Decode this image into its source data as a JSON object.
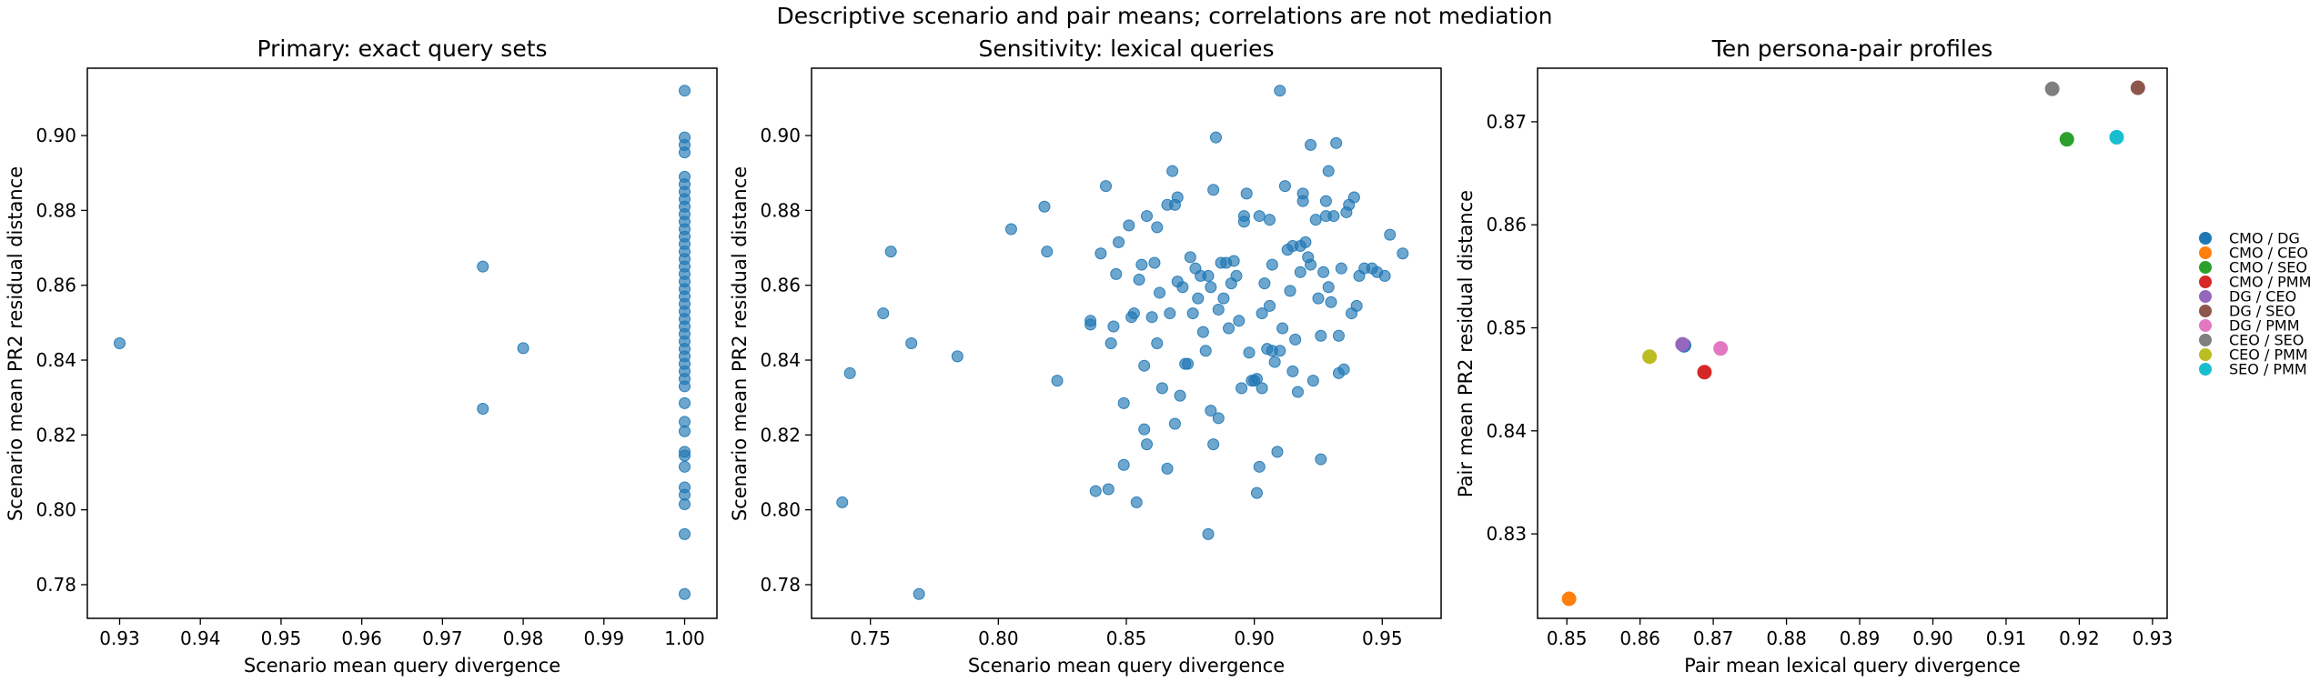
{
  "figure": {
    "suptitle": "Descriptive scenario and pair means; correlations are not mediation"
  },
  "chart_data": [
    {
      "type": "scatter",
      "title": "Primary: exact query sets",
      "xlabel": "Scenario mean query divergence",
      "ylabel": "Scenario mean PR2 residual distance",
      "xlim": [
        0.926,
        1.004
      ],
      "ylim": [
        0.771,
        0.918
      ],
      "xticks": [
        "0.93",
        "0.94",
        "0.95",
        "0.96",
        "0.97",
        "0.98",
        "0.99",
        "1.00"
      ],
      "yticks": [
        "0.78",
        "0.80",
        "0.82",
        "0.84",
        "0.86",
        "0.88",
        "0.90"
      ],
      "grid": false,
      "color": "#1f77b4",
      "points": [
        {
          "x": 0.93,
          "y": 0.8445
        },
        {
          "x": 0.975,
          "y": 0.865
        },
        {
          "x": 0.975,
          "y": 0.827
        },
        {
          "x": 0.98,
          "y": 0.8432
        },
        {
          "x": 1.0,
          "y": 0.912
        },
        {
          "x": 1.0,
          "y": 0.8995
        },
        {
          "x": 1.0,
          "y": 0.8975
        },
        {
          "x": 1.0,
          "y": 0.8955
        },
        {
          "x": 1.0,
          "y": 0.889
        },
        {
          "x": 1.0,
          "y": 0.887
        },
        {
          "x": 1.0,
          "y": 0.885
        },
        {
          "x": 1.0,
          "y": 0.883
        },
        {
          "x": 1.0,
          "y": 0.881
        },
        {
          "x": 1.0,
          "y": 0.879
        },
        {
          "x": 1.0,
          "y": 0.877
        },
        {
          "x": 1.0,
          "y": 0.875
        },
        {
          "x": 1.0,
          "y": 0.873
        },
        {
          "x": 1.0,
          "y": 0.871
        },
        {
          "x": 1.0,
          "y": 0.869
        },
        {
          "x": 1.0,
          "y": 0.867
        },
        {
          "x": 1.0,
          "y": 0.865
        },
        {
          "x": 1.0,
          "y": 0.863
        },
        {
          "x": 1.0,
          "y": 0.861
        },
        {
          "x": 1.0,
          "y": 0.859
        },
        {
          "x": 1.0,
          "y": 0.857
        },
        {
          "x": 1.0,
          "y": 0.855
        },
        {
          "x": 1.0,
          "y": 0.853
        },
        {
          "x": 1.0,
          "y": 0.851
        },
        {
          "x": 1.0,
          "y": 0.849
        },
        {
          "x": 1.0,
          "y": 0.847
        },
        {
          "x": 1.0,
          "y": 0.845
        },
        {
          "x": 1.0,
          "y": 0.843
        },
        {
          "x": 1.0,
          "y": 0.841
        },
        {
          "x": 1.0,
          "y": 0.839
        },
        {
          "x": 1.0,
          "y": 0.837
        },
        {
          "x": 1.0,
          "y": 0.835
        },
        {
          "x": 1.0,
          "y": 0.833
        },
        {
          "x": 1.0,
          "y": 0.8285
        },
        {
          "x": 1.0,
          "y": 0.8235
        },
        {
          "x": 1.0,
          "y": 0.821
        },
        {
          "x": 1.0,
          "y": 0.8155
        },
        {
          "x": 1.0,
          "y": 0.8145
        },
        {
          "x": 1.0,
          "y": 0.8115
        },
        {
          "x": 1.0,
          "y": 0.806
        },
        {
          "x": 1.0,
          "y": 0.804
        },
        {
          "x": 1.0,
          "y": 0.8015
        },
        {
          "x": 1.0,
          "y": 0.7935
        },
        {
          "x": 1.0,
          "y": 0.7775
        }
      ]
    },
    {
      "type": "scatter",
      "title": "Sensitivity: lexical queries",
      "xlabel": "Scenario mean query divergence",
      "ylabel": "Scenario mean PR2 residual distance",
      "xlim": [
        0.727,
        0.973
      ],
      "ylim": [
        0.771,
        0.918
      ],
      "xticks": [
        "0.75",
        "0.80",
        "0.85",
        "0.90",
        "0.95"
      ],
      "yticks": [
        "0.78",
        "0.80",
        "0.82",
        "0.84",
        "0.86",
        "0.88",
        "0.90"
      ],
      "grid": false,
      "color": "#1f77b4",
      "points": [
        {
          "x": 0.739,
          "y": 0.802
        },
        {
          "x": 0.742,
          "y": 0.8365
        },
        {
          "x": 0.755,
          "y": 0.8525
        },
        {
          "x": 0.758,
          "y": 0.869
        },
        {
          "x": 0.766,
          "y": 0.8445
        },
        {
          "x": 0.769,
          "y": 0.7775
        },
        {
          "x": 0.784,
          "y": 0.841
        },
        {
          "x": 0.805,
          "y": 0.875
        },
        {
          "x": 0.818,
          "y": 0.881
        },
        {
          "x": 0.819,
          "y": 0.869
        },
        {
          "x": 0.823,
          "y": 0.8345
        },
        {
          "x": 0.836,
          "y": 0.8495
        },
        {
          "x": 0.836,
          "y": 0.8505
        },
        {
          "x": 0.838,
          "y": 0.805
        },
        {
          "x": 0.84,
          "y": 0.8685
        },
        {
          "x": 0.842,
          "y": 0.8865
        },
        {
          "x": 0.843,
          "y": 0.8055
        },
        {
          "x": 0.844,
          "y": 0.8445
        },
        {
          "x": 0.845,
          "y": 0.849
        },
        {
          "x": 0.846,
          "y": 0.863
        },
        {
          "x": 0.847,
          "y": 0.8715
        },
        {
          "x": 0.849,
          "y": 0.8285
        },
        {
          "x": 0.849,
          "y": 0.812
        },
        {
          "x": 0.851,
          "y": 0.876
        },
        {
          "x": 0.852,
          "y": 0.8515
        },
        {
          "x": 0.853,
          "y": 0.8525
        },
        {
          "x": 0.854,
          "y": 0.802
        },
        {
          "x": 0.855,
          "y": 0.8615
        },
        {
          "x": 0.856,
          "y": 0.8655
        },
        {
          "x": 0.857,
          "y": 0.8385
        },
        {
          "x": 0.857,
          "y": 0.8215
        },
        {
          "x": 0.858,
          "y": 0.8785
        },
        {
          "x": 0.858,
          "y": 0.8175
        },
        {
          "x": 0.86,
          "y": 0.8515
        },
        {
          "x": 0.861,
          "y": 0.866
        },
        {
          "x": 0.862,
          "y": 0.8755
        },
        {
          "x": 0.862,
          "y": 0.8445
        },
        {
          "x": 0.863,
          "y": 0.858
        },
        {
          "x": 0.864,
          "y": 0.8325
        },
        {
          "x": 0.866,
          "y": 0.811
        },
        {
          "x": 0.866,
          "y": 0.8815
        },
        {
          "x": 0.867,
          "y": 0.8525
        },
        {
          "x": 0.868,
          "y": 0.8905
        },
        {
          "x": 0.869,
          "y": 0.8815
        },
        {
          "x": 0.869,
          "y": 0.823
        },
        {
          "x": 0.87,
          "y": 0.8835
        },
        {
          "x": 0.87,
          "y": 0.861
        },
        {
          "x": 0.871,
          "y": 0.8305
        },
        {
          "x": 0.872,
          "y": 0.8595
        },
        {
          "x": 0.873,
          "y": 0.839
        },
        {
          "x": 0.874,
          "y": 0.839
        },
        {
          "x": 0.875,
          "y": 0.8675
        },
        {
          "x": 0.876,
          "y": 0.8525
        },
        {
          "x": 0.877,
          "y": 0.8645
        },
        {
          "x": 0.878,
          "y": 0.8565
        },
        {
          "x": 0.879,
          "y": 0.8625
        },
        {
          "x": 0.88,
          "y": 0.8475
        },
        {
          "x": 0.881,
          "y": 0.8425
        },
        {
          "x": 0.882,
          "y": 0.8625
        },
        {
          "x": 0.882,
          "y": 0.7935
        },
        {
          "x": 0.883,
          "y": 0.8595
        },
        {
          "x": 0.883,
          "y": 0.8265
        },
        {
          "x": 0.884,
          "y": 0.8855
        },
        {
          "x": 0.884,
          "y": 0.8175
        },
        {
          "x": 0.885,
          "y": 0.8995
        },
        {
          "x": 0.886,
          "y": 0.8535
        },
        {
          "x": 0.886,
          "y": 0.8245
        },
        {
          "x": 0.887,
          "y": 0.866
        },
        {
          "x": 0.888,
          "y": 0.8565
        },
        {
          "x": 0.889,
          "y": 0.866
        },
        {
          "x": 0.89,
          "y": 0.8485
        },
        {
          "x": 0.891,
          "y": 0.8605
        },
        {
          "x": 0.892,
          "y": 0.8665
        },
        {
          "x": 0.893,
          "y": 0.8625
        },
        {
          "x": 0.894,
          "y": 0.8505
        },
        {
          "x": 0.895,
          "y": 0.8325
        },
        {
          "x": 0.896,
          "y": 0.8785
        },
        {
          "x": 0.896,
          "y": 0.877
        },
        {
          "x": 0.897,
          "y": 0.8845
        },
        {
          "x": 0.898,
          "y": 0.842
        },
        {
          "x": 0.899,
          "y": 0.8345
        },
        {
          "x": 0.9,
          "y": 0.8345
        },
        {
          "x": 0.901,
          "y": 0.8045
        },
        {
          "x": 0.901,
          "y": 0.835
        },
        {
          "x": 0.902,
          "y": 0.8115
        },
        {
          "x": 0.902,
          "y": 0.8785
        },
        {
          "x": 0.903,
          "y": 0.8325
        },
        {
          "x": 0.903,
          "y": 0.8525
        },
        {
          "x": 0.904,
          "y": 0.8605
        },
        {
          "x": 0.905,
          "y": 0.843
        },
        {
          "x": 0.906,
          "y": 0.8545
        },
        {
          "x": 0.906,
          "y": 0.8775
        },
        {
          "x": 0.907,
          "y": 0.8425
        },
        {
          "x": 0.907,
          "y": 0.8655
        },
        {
          "x": 0.908,
          "y": 0.8395
        },
        {
          "x": 0.909,
          "y": 0.8155
        },
        {
          "x": 0.91,
          "y": 0.912
        },
        {
          "x": 0.91,
          "y": 0.8425
        },
        {
          "x": 0.911,
          "y": 0.8485
        },
        {
          "x": 0.912,
          "y": 0.8865
        },
        {
          "x": 0.913,
          "y": 0.8695
        },
        {
          "x": 0.914,
          "y": 0.8585
        },
        {
          "x": 0.915,
          "y": 0.8705
        },
        {
          "x": 0.915,
          "y": 0.837
        },
        {
          "x": 0.916,
          "y": 0.8455
        },
        {
          "x": 0.917,
          "y": 0.8315
        },
        {
          "x": 0.918,
          "y": 0.8705
        },
        {
          "x": 0.918,
          "y": 0.8635
        },
        {
          "x": 0.919,
          "y": 0.8845
        },
        {
          "x": 0.919,
          "y": 0.8825
        },
        {
          "x": 0.92,
          "y": 0.8715
        },
        {
          "x": 0.921,
          "y": 0.8675
        },
        {
          "x": 0.922,
          "y": 0.8655
        },
        {
          "x": 0.922,
          "y": 0.8975
        },
        {
          "x": 0.923,
          "y": 0.8345
        },
        {
          "x": 0.924,
          "y": 0.8775
        },
        {
          "x": 0.925,
          "y": 0.8565
        },
        {
          "x": 0.926,
          "y": 0.8465
        },
        {
          "x": 0.926,
          "y": 0.8135
        },
        {
          "x": 0.927,
          "y": 0.8635
        },
        {
          "x": 0.928,
          "y": 0.8825
        },
        {
          "x": 0.928,
          "y": 0.8785
        },
        {
          "x": 0.929,
          "y": 0.8905
        },
        {
          "x": 0.929,
          "y": 0.8595
        },
        {
          "x": 0.93,
          "y": 0.8555
        },
        {
          "x": 0.931,
          "y": 0.8785
        },
        {
          "x": 0.932,
          "y": 0.898
        },
        {
          "x": 0.933,
          "y": 0.8465
        },
        {
          "x": 0.933,
          "y": 0.8365
        },
        {
          "x": 0.934,
          "y": 0.8645
        },
        {
          "x": 0.935,
          "y": 0.8375
        },
        {
          "x": 0.936,
          "y": 0.8795
        },
        {
          "x": 0.937,
          "y": 0.8815
        },
        {
          "x": 0.938,
          "y": 0.8525
        },
        {
          "x": 0.939,
          "y": 0.8835
        },
        {
          "x": 0.94,
          "y": 0.8545
        },
        {
          "x": 0.941,
          "y": 0.8625
        },
        {
          "x": 0.943,
          "y": 0.8645
        },
        {
          "x": 0.946,
          "y": 0.8645
        },
        {
          "x": 0.948,
          "y": 0.8635
        },
        {
          "x": 0.951,
          "y": 0.8625
        },
        {
          "x": 0.953,
          "y": 0.8735
        },
        {
          "x": 0.958,
          "y": 0.8685
        }
      ]
    },
    {
      "type": "scatter",
      "title": "Ten persona-pair profiles",
      "xlabel": "Pair mean lexical query divergence",
      "ylabel": "Pair mean PR2 residual distance",
      "xlim": [
        0.846,
        0.932
      ],
      "ylim": [
        0.8218,
        0.8752
      ],
      "xticks": [
        "0.85",
        "0.86",
        "0.87",
        "0.88",
        "0.89",
        "0.90",
        "0.91",
        "0.92",
        "0.93"
      ],
      "yticks": [
        "0.83",
        "0.84",
        "0.85",
        "0.86",
        "0.87"
      ],
      "grid": false,
      "legend_position": "right",
      "series": [
        {
          "name": "CMO / DG",
          "color": "#1f77b4",
          "x": 0.866,
          "y": 0.8483
        },
        {
          "name": "CMO / CEO",
          "color": "#ff7f0e",
          "x": 0.8503,
          "y": 0.8237
        },
        {
          "name": "CMO / SEO",
          "color": "#2ca02c",
          "x": 0.9183,
          "y": 0.8683
        },
        {
          "name": "CMO / PMM",
          "color": "#d62728",
          "x": 0.8688,
          "y": 0.8457
        },
        {
          "name": "DG / CEO",
          "color": "#9467bd",
          "x": 0.8658,
          "y": 0.8484
        },
        {
          "name": "DG / SEO",
          "color": "#8c564b",
          "x": 0.928,
          "y": 0.8733
        },
        {
          "name": "DG / PMM",
          "color": "#e377c2",
          "x": 0.871,
          "y": 0.848
        },
        {
          "name": "CEO / SEO",
          "color": "#7f7f7f",
          "x": 0.9163,
          "y": 0.8732
        },
        {
          "name": "CEO / PMM",
          "color": "#bcbd22",
          "x": 0.8613,
          "y": 0.8472
        },
        {
          "name": "SEO / PMM",
          "color": "#17becf",
          "x": 0.9251,
          "y": 0.8685
        }
      ]
    }
  ]
}
